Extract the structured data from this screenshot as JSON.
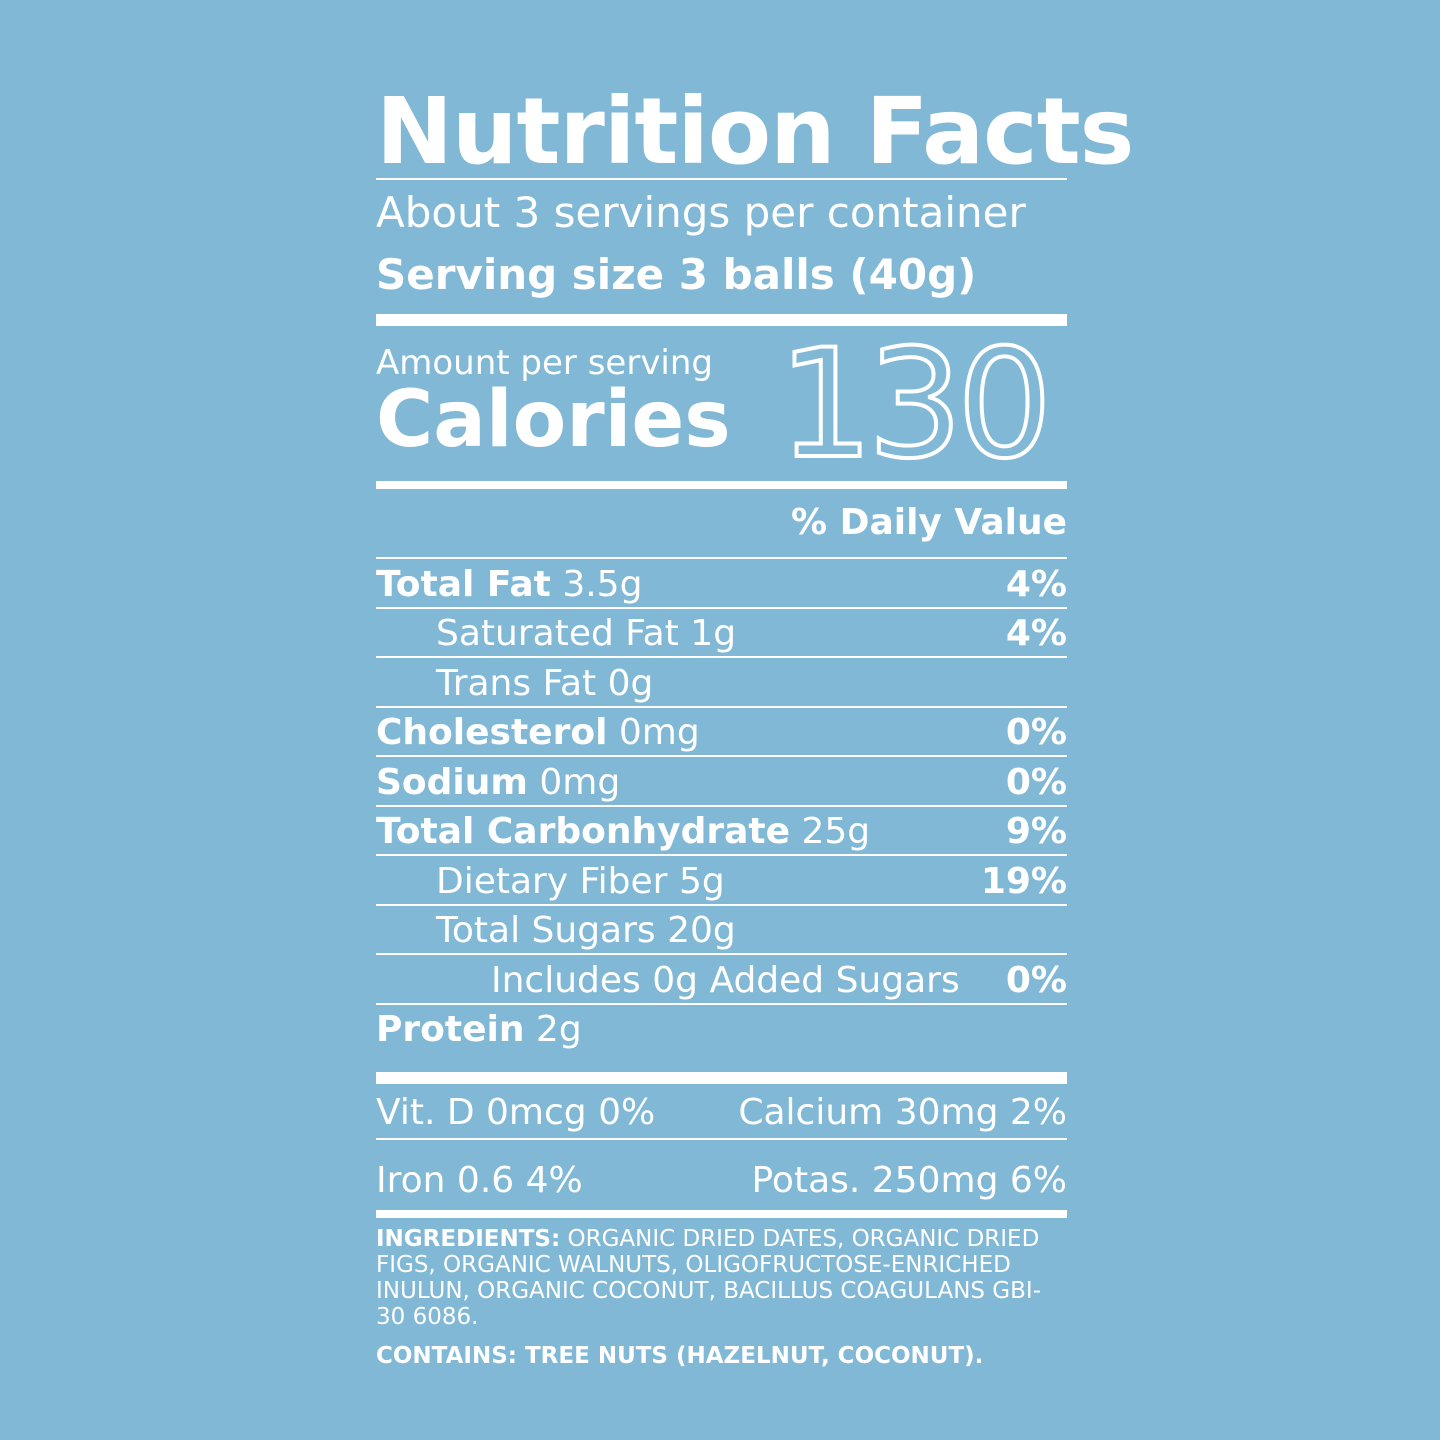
{
  "header": {
    "title": "Nutrition Facts",
    "servings": "About 3 servings per container",
    "serving_size": "Serving size 3 balls (40g)"
  },
  "calories": {
    "amount_label": "Amount per serving",
    "label": "Calories",
    "value": "130"
  },
  "dv_header": "% Daily Value",
  "rows": [
    {
      "label": "Total Fat",
      "amount": "3.5g",
      "dv": "4%",
      "indent": 0
    },
    {
      "label": "Saturated Fat",
      "amount": "1g",
      "dv": "4%",
      "indent": 1
    },
    {
      "label": "Trans Fat",
      "amount": "0g",
      "dv": null,
      "indent": 1
    },
    {
      "label": "Cholesterol",
      "amount": "0mg",
      "dv": "0%",
      "indent": 0
    },
    {
      "label": "Sodium",
      "amount": "0mg",
      "dv": "0%",
      "indent": 0
    },
    {
      "label": "Total Carbonhydrate",
      "amount": "25g",
      "dv": "9%",
      "indent": 0
    },
    {
      "label": "Dietary Fiber",
      "amount": "5g",
      "dv": "19%",
      "indent": 1
    },
    {
      "label": "Total Sugars",
      "amount": "20g",
      "dv": null,
      "indent": 1
    },
    {
      "label": "Includes 0g Added Sugars",
      "amount": null,
      "dv": "0%",
      "indent": 2
    },
    {
      "label": "Protein",
      "amount": "2g",
      "dv": null,
      "indent": 0
    }
  ],
  "vitamins": [
    [
      {
        "label": "Vit. D",
        "amount": "0mcg",
        "dv": "0%"
      },
      {
        "label": "Calcium",
        "amount": "30mg",
        "dv": "2%"
      }
    ],
    [
      {
        "label": "Iron",
        "amount": "0.6",
        "dv": "4%"
      },
      {
        "label": "Potas.",
        "amount": "250mg",
        "dv": "6%"
      }
    ]
  ],
  "ingredients": {
    "label": "INGREDIENTS:",
    "text": "ORGANIC DRIED DATES, ORGANIC DRIED FIGS, ORGANIC WALNUTS, OLIGOFRUCTOSE-ENRICHED INULUN, ORGANIC COCONUT, BACILLUS COAGULANS GBI-30 6086."
  },
  "contains": {
    "label": "CONTAINS:",
    "text": "TREE NUTS (HAZELNUT, COCONUT)."
  }
}
